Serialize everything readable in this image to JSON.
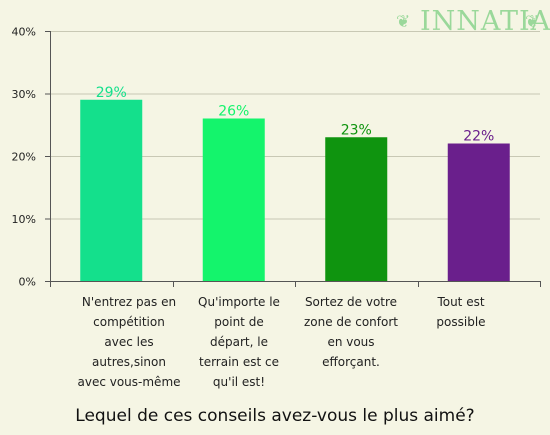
{
  "logo": {
    "text": "INNATIA",
    "ornament_left": "❦",
    "ornament_right": "❦",
    "color": "#9ad89a"
  },
  "question": "Lequel de ces conseils avez-vous le plus aimé?",
  "chart_data": {
    "type": "bar",
    "title": "",
    "xlabel": "",
    "ylabel": "",
    "ylim": [
      0,
      40
    ],
    "yticks": [
      "0%",
      "10%",
      "20%",
      "30%",
      "40%"
    ],
    "ytick_values": [
      0,
      10,
      20,
      30,
      40
    ],
    "grid": true,
    "categories": [
      "N'entrez pas en\ncompétition\navec les\nautres,sinon\navec vous-même",
      "Qu'importe le\npoint de\ndépart, le\nterrain est ce\nqu'il est!",
      "Sortez de votre\nzone de confort\nen vous\nefforçant.",
      "Tout est\npossible"
    ],
    "values": [
      29,
      26,
      23,
      22
    ],
    "value_labels": [
      "29%",
      "26%",
      "23%",
      "22%"
    ],
    "colors": [
      "#14e08c",
      "#14f46c",
      "#0f940f",
      "#6a1f8c"
    ]
  }
}
